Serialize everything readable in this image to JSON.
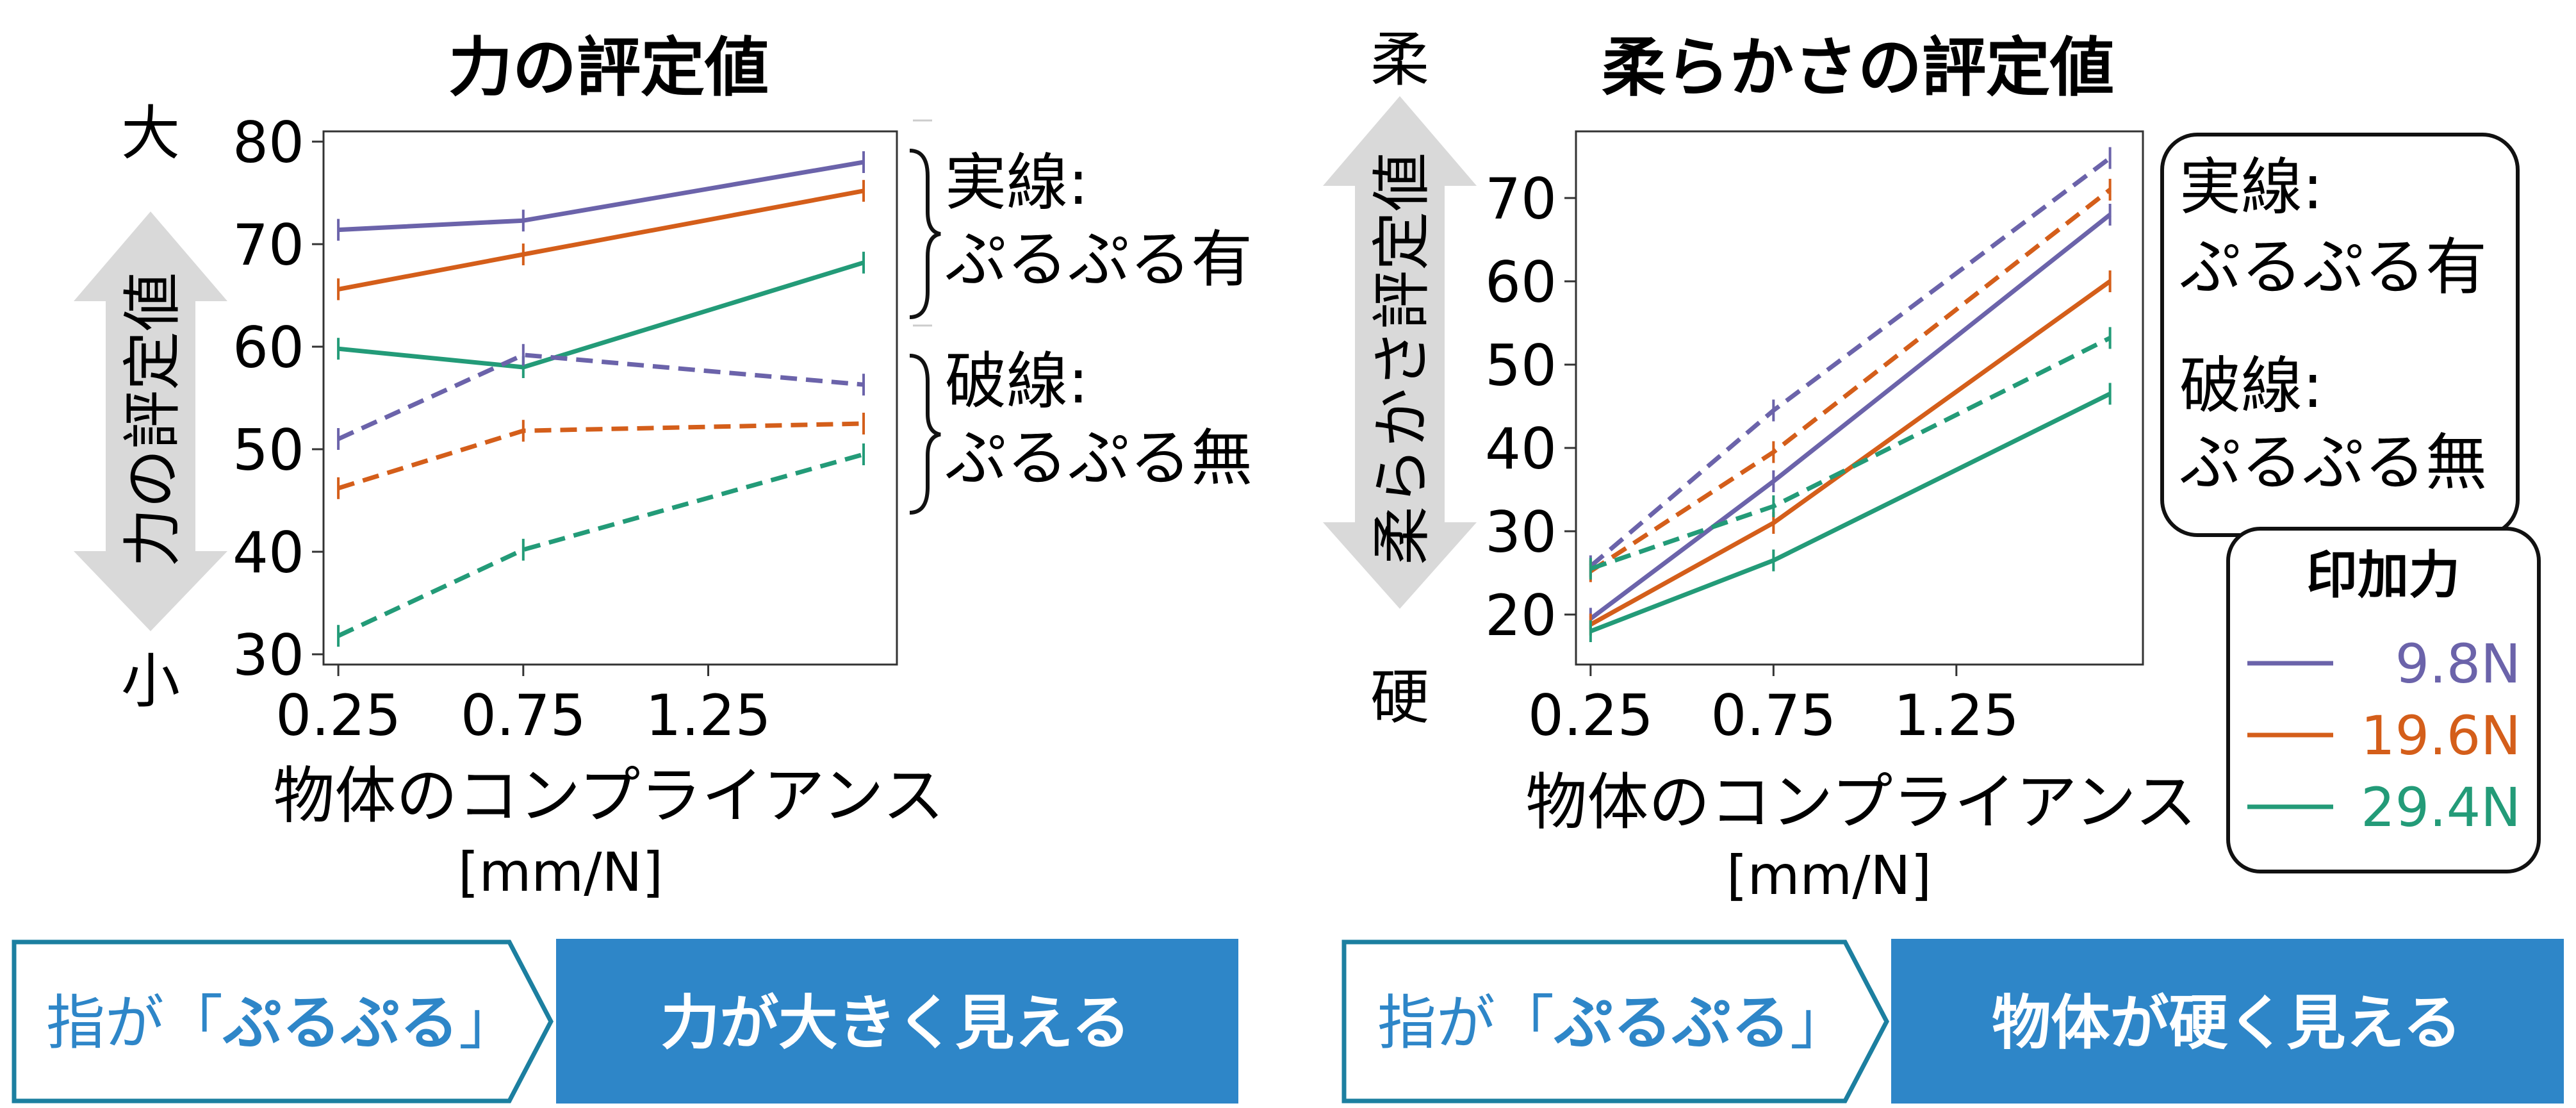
{
  "colors": {
    "series_9_8": "#6b63aa",
    "series_19_6": "#d45e1a",
    "series_29_4": "#239b78",
    "banner_blue": "#2e86c8",
    "banner_outline": "#1c7fa0",
    "arrow_gray": "#d9d9d9"
  },
  "chart_data": [
    {
      "type": "line",
      "title": "力の評定値",
      "xlabel_line1": "物体のコンプライアンス",
      "xlabel_line2": "[mm/N]",
      "ylabel": "力の評定値",
      "ylabel_top": "大",
      "ylabel_bottom": "小",
      "xticks": [
        "0.25",
        "0.75",
        "1.25"
      ],
      "yticks": [
        "30",
        "40",
        "50",
        "60",
        "70",
        "80"
      ],
      "xlim": [
        0.21,
        1.76
      ],
      "ylim": [
        29,
        81
      ],
      "x": [
        0.25,
        0.75,
        1.67
      ],
      "series": [
        {
          "compliance_force": "9.8N",
          "style": "solid",
          "values": [
            71.4,
            72.3,
            78.0
          ]
        },
        {
          "compliance_force": "19.6N",
          "style": "solid",
          "values": [
            65.6,
            69.0,
            75.2
          ]
        },
        {
          "compliance_force": "29.4N",
          "style": "solid",
          "values": [
            59.8,
            58.0,
            68.2
          ]
        },
        {
          "compliance_force": "9.8N",
          "style": "dashed",
          "values": [
            51.0,
            59.2,
            56.3
          ]
        },
        {
          "compliance_force": "19.6N",
          "style": "dashed",
          "values": [
            46.2,
            51.8,
            52.5
          ]
        },
        {
          "compliance_force": "29.4N",
          "style": "dashed",
          "values": [
            31.8,
            40.2,
            49.5
          ]
        }
      ],
      "annotations": {
        "solid_line1": "実線:",
        "solid_line2": "ぷるぷる有",
        "dashed_line1": "破線:",
        "dashed_line2": "ぷるぷる無"
      }
    },
    {
      "type": "line",
      "title": "柔らかさの評定値",
      "xlabel_line1": "物体のコンプライアンス",
      "xlabel_line2": "[mm/N]",
      "ylabel": "柔らかさ評定値",
      "ylabel_top": "柔",
      "ylabel_bottom": "硬",
      "xticks": [
        "0.25",
        "0.75",
        "1.25"
      ],
      "yticks": [
        "20",
        "30",
        "40",
        "50",
        "60",
        "70"
      ],
      "xlim": [
        0.21,
        1.76
      ],
      "ylim": [
        14,
        78
      ],
      "x": [
        0.25,
        0.75,
        1.67
      ],
      "series": [
        {
          "compliance_force": "9.8N",
          "style": "solid",
          "values": [
            19.5,
            36.0,
            68.0
          ]
        },
        {
          "compliance_force": "19.6N",
          "style": "solid",
          "values": [
            18.8,
            31.0,
            60.0
          ]
        },
        {
          "compliance_force": "29.4N",
          "style": "solid",
          "values": [
            18.0,
            26.5,
            46.5
          ]
        },
        {
          "compliance_force": "9.8N",
          "style": "dashed",
          "values": [
            25.8,
            44.5,
            74.8
          ]
        },
        {
          "compliance_force": "19.6N",
          "style": "dashed",
          "values": [
            25.2,
            39.5,
            71.0
          ]
        },
        {
          "compliance_force": "29.4N",
          "style": "dashed",
          "values": [
            25.5,
            33.0,
            53.2
          ]
        }
      ],
      "annotations": {
        "solid_line1": "実線:",
        "solid_line2": "ぷるぷる有",
        "dashed_line1": "破線:",
        "dashed_line2": "ぷるぷる無"
      },
      "legend": {
        "title": "印加力",
        "entries": [
          "9.8N",
          "19.6N",
          "29.4N"
        ]
      }
    }
  ],
  "banners": [
    {
      "left_prefix": "指が「",
      "left_bold": "ぷるぷる",
      "left_suffix": "」",
      "right": "力が大きく見える"
    },
    {
      "left_prefix": "指が「",
      "left_bold": "ぷるぷる",
      "left_suffix": "」",
      "right": "物体が硬く見える"
    }
  ]
}
